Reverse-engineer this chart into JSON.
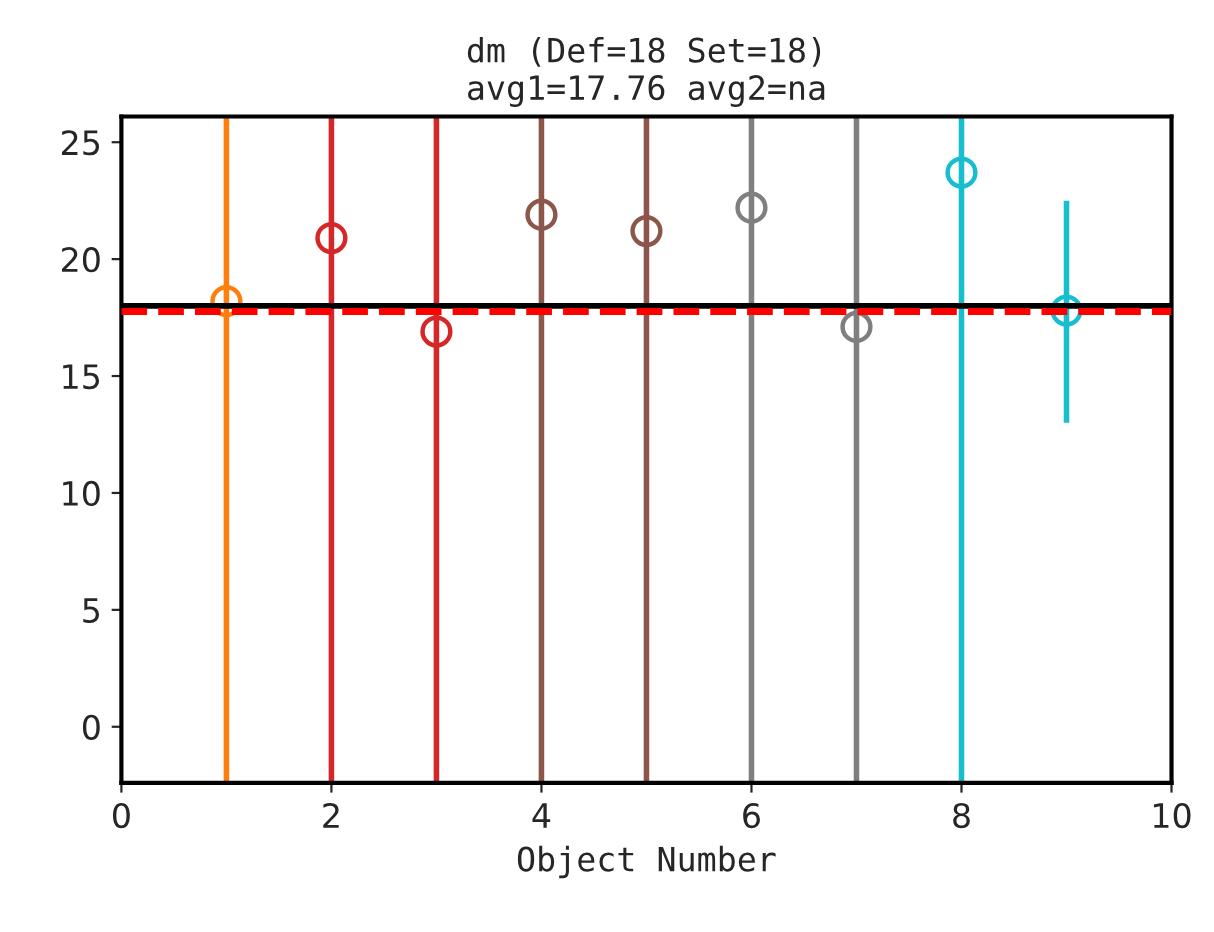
{
  "chart_data": {
    "type": "scatter",
    "title": "dm (Def=18 Set=18)\navg1=17.76 avg2=na",
    "xlabel": "Object Number",
    "x": [
      1,
      2,
      3,
      4,
      5,
      6,
      7,
      8,
      9
    ],
    "values": [
      18.2,
      20.9,
      16.9,
      21.9,
      21.2,
      22.2,
      17.1,
      23.7,
      17.8
    ],
    "errors": [
      [
        -2.4,
        26.1
      ],
      [
        -2.4,
        26.1
      ],
      [
        -2.4,
        26.1
      ],
      [
        -2.4,
        26.1
      ],
      [
        -2.4,
        26.1
      ],
      [
        -2.4,
        26.1
      ],
      [
        -2.4,
        26.1
      ],
      [
        -2.4,
        26.1
      ],
      [
        13.0,
        22.5
      ]
    ],
    "colors": [
      "#ff7f0e",
      "#d62728",
      "#d62728",
      "#8c564b",
      "#8c564b",
      "#7f7f7f",
      "#7f7f7f",
      "#17becf",
      "#17becf"
    ],
    "marker": "circle",
    "xlim": [
      0,
      10
    ],
    "xticks": [
      0,
      2,
      4,
      6,
      8,
      10
    ],
    "ylim": [
      -2.4,
      26.1
    ],
    "yticks": [
      0,
      5,
      10,
      15,
      20,
      25
    ],
    "ref_lines": [
      {
        "axis": "y",
        "value": 18,
        "color": "#000000",
        "line_style": "solid"
      },
      {
        "axis": "y",
        "value": 17.76,
        "color": "#ff0000",
        "line_style": "dashed"
      }
    ],
    "grid": false,
    "legend": false
  }
}
